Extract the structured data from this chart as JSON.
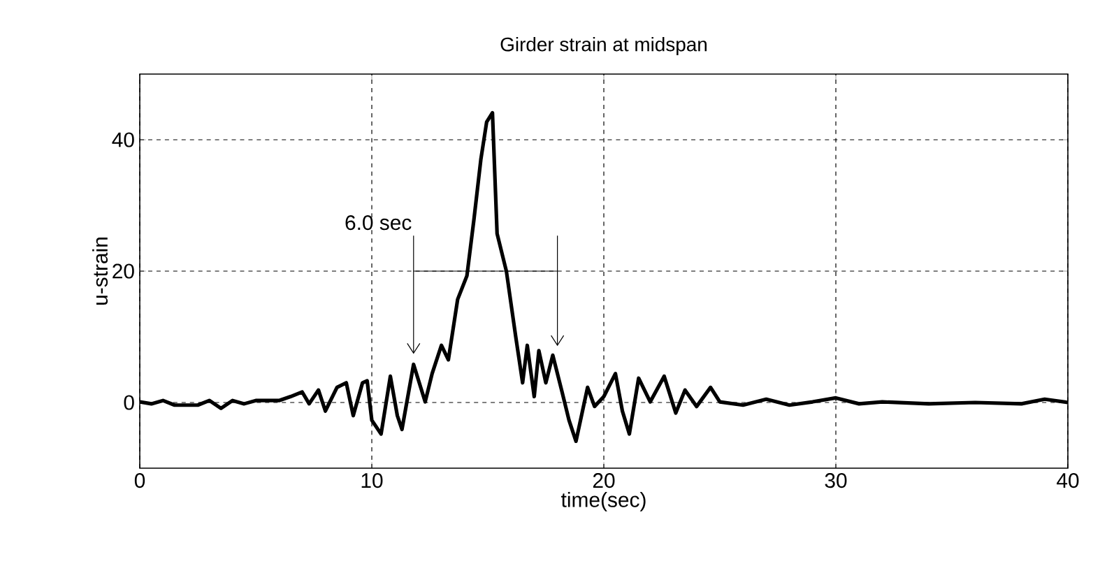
{
  "chart_data": {
    "type": "line",
    "title": "Girder strain at midspan",
    "xlabel": "time(sec)",
    "ylabel": "u-strain",
    "x": [
      0,
      0.5,
      1,
      1.5,
      2.5,
      3,
      3.5,
      4,
      4.5,
      5,
      6,
      6.5,
      7,
      7.3,
      7.7,
      8,
      8.5,
      8.9,
      9.2,
      9.6,
      9.8,
      10,
      10.4,
      10.8,
      11.1,
      11.3,
      11.8,
      12.3,
      12.6,
      13,
      13.3,
      13.7,
      14.1,
      14.4,
      14.7,
      14.95,
      15.2,
      15.4,
      15.8,
      16.2,
      16.5,
      16.7,
      17,
      17.2,
      17.5,
      17.8,
      18.2,
      18.5,
      18.8,
      19.3,
      19.6,
      20,
      20.5,
      20.8,
      21.1,
      21.5,
      22,
      22.6,
      23.1,
      23.5,
      24,
      24.6,
      25,
      26,
      27,
      28,
      29,
      30,
      31,
      32,
      34,
      36,
      38,
      39,
      40
    ],
    "series": [
      {
        "color": "#000000",
        "values": [
          0.1,
          -0.2,
          0.3,
          -0.4,
          -0.4,
          0.3,
          -0.9,
          0.3,
          -0.2,
          0.3,
          0.3,
          0.9,
          1.6,
          -0.2,
          1.9,
          -1.3,
          2.3,
          3.0,
          -2.0,
          3.0,
          3.3,
          -2.7,
          -4.8,
          4.0,
          -2.0,
          -4.1,
          5.8,
          0.1,
          4.4,
          8.7,
          6.5,
          15.7,
          19.3,
          27.8,
          37.0,
          42.7,
          44.1,
          25.7,
          20,
          10.1,
          3.0,
          8.7,
          0.9,
          7.9,
          3.0,
          7.2,
          1.6,
          -2.7,
          -5.9,
          2.3,
          -0.6,
          0.9,
          4.4,
          -1.3,
          -4.8,
          3.7,
          0.1,
          4.0,
          -1.6,
          1.9,
          -0.6,
          2.3,
          0.1,
          -0.4,
          0.5,
          -0.4,
          0.1,
          0.7,
          -0.2,
          0.1,
          -0.2,
          0,
          -0.2,
          0.5,
          0
        ]
      }
    ],
    "xlim": [
      0,
      40
    ],
    "ylim": [
      -10,
      50
    ],
    "xticks": [
      0,
      10,
      20,
      30,
      40
    ],
    "yticks": [
      0,
      20,
      40
    ],
    "grid": true,
    "line_style": "solid",
    "marker": "none",
    "annotations": [
      "6.0 sec"
    ]
  }
}
